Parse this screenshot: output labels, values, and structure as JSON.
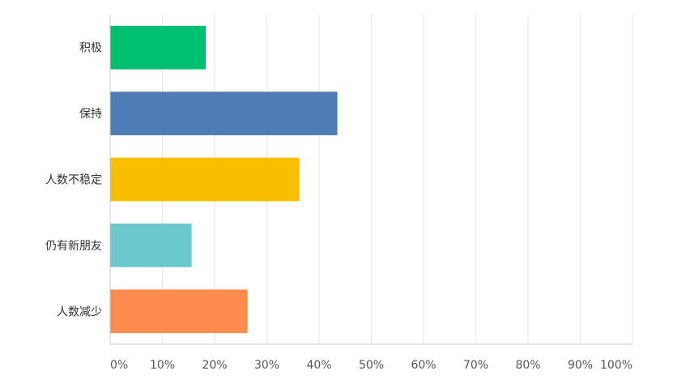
{
  "chart_data": {
    "type": "bar",
    "orientation": "horizontal",
    "categories": [
      "积极",
      "保持",
      "人数不稳定",
      "仍有新朋友",
      "人数减少"
    ],
    "values": [
      18.3,
      43.5,
      36.2,
      15.6,
      26.3
    ],
    "colors": [
      "#00bf6f",
      "#507cb6",
      "#f9be00",
      "#6bc8cd",
      "#ff8b4f"
    ],
    "xlim": [
      0,
      100
    ],
    "ticks": [
      "0%",
      "10%",
      "20%",
      "30%",
      "40%",
      "50%",
      "60%",
      "70%",
      "80%",
      "90%",
      "100%"
    ],
    "grid": true,
    "title": "",
    "xlabel": "",
    "ylabel": ""
  }
}
